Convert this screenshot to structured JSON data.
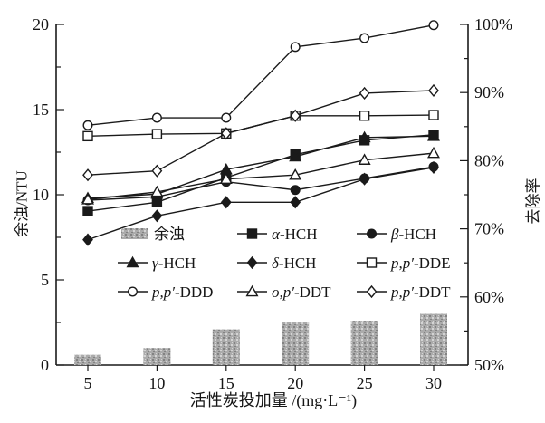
{
  "chart_data": {
    "type": "combo-bar-line",
    "categories": [
      5,
      10,
      15,
      20,
      25,
      30
    ],
    "x_axis": {
      "label": "活性炭投加量 /(mg·L⁻¹)",
      "tick_labels": [
        "5",
        "10",
        "15",
        "20",
        "25",
        "30"
      ]
    },
    "y_left": {
      "label": "余浊/NTU",
      "range": [
        0,
        20
      ],
      "major_ticks": [
        0,
        5,
        10,
        15,
        20
      ],
      "minor_step": 2.5
    },
    "y_right": {
      "label": "去除率",
      "range": [
        50,
        100
      ],
      "major_tick_labels": [
        "50%",
        "60%",
        "70%",
        "80%",
        "90%",
        "100%"
      ],
      "minor_step": 5
    },
    "grid": "off",
    "bars": {
      "label": "余浊",
      "axis": "left",
      "unit": "NTU",
      "values": [
        0.6,
        1.0,
        2.1,
        2.5,
        2.6,
        3.0
      ]
    },
    "series": [
      {
        "id": "alpha-hch",
        "em": "α",
        "rest": "-HCH",
        "marker": "filled-square",
        "axis": "right",
        "values_percent": [
          72.6,
          73.9,
          77.5,
          80.9,
          83.0,
          83.8
        ]
      },
      {
        "id": "beta-hch",
        "em": "β",
        "rest": "-HCH",
        "marker": "filled-circle",
        "axis": "right",
        "values_percent": [
          74.2,
          74.7,
          76.9,
          75.7,
          77.4,
          79.1
        ]
      },
      {
        "id": "gamma-hch",
        "em": "γ",
        "rest": "-HCH",
        "marker": "filled-triangle",
        "axis": "right",
        "values_percent": [
          74.5,
          75.1,
          78.7,
          80.6,
          83.4,
          83.6
        ]
      },
      {
        "id": "delta-hch",
        "em": "δ",
        "rest": "-HCH",
        "marker": "filled-diamond",
        "axis": "right",
        "values_percent": [
          68.4,
          71.9,
          73.9,
          73.9,
          77.3,
          79.0
        ]
      },
      {
        "id": "pp-dde",
        "em": "p,p′",
        "rest": "-DDE",
        "marker": "open-square",
        "axis": "right",
        "values_percent": [
          83.6,
          83.9,
          84.0,
          86.6,
          86.6,
          86.7
        ]
      },
      {
        "id": "pp-ddd",
        "em": "p,p′",
        "rest": "-DDD",
        "marker": "open-circle",
        "axis": "right",
        "values_percent": [
          85.2,
          86.3,
          86.3,
          96.7,
          98.0,
          99.9
        ]
      },
      {
        "id": "op-ddt",
        "em": "o,p′",
        "rest": "-DDT",
        "marker": "open-triangle",
        "axis": "right",
        "values_percent": [
          74.3,
          75.4,
          77.3,
          77.9,
          80.1,
          81.1
        ]
      },
      {
        "id": "pp-ddt",
        "em": "p,p′",
        "rest": "-DDT",
        "marker": "open-diamond",
        "axis": "right",
        "values_percent": [
          77.9,
          78.5,
          84.0,
          86.6,
          89.9,
          90.3
        ]
      }
    ],
    "legend": {
      "position": "inside-lower-left",
      "rows": [
        [
          "余浊",
          "α-HCH",
          "β-HCH"
        ],
        [
          "γ-HCH",
          "δ-HCH",
          "p,p′-DDE"
        ],
        [
          "p,p′-DDD",
          "o,p′-DDT",
          "p,p′-DDT"
        ]
      ]
    }
  },
  "colors": {
    "ink": "#1a1a1a",
    "background": "#ffffff",
    "bar_base": "#ababab",
    "bar_dark": "#828282",
    "bar_light": "#d4d4d4"
  }
}
